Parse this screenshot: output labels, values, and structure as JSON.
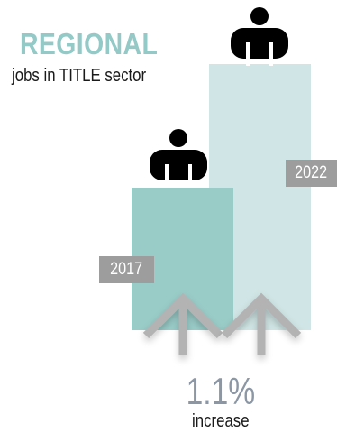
{
  "heading": {
    "title": "REGIONAL",
    "subtitle": "jobs in TITLE sector"
  },
  "chart_data": {
    "type": "bar",
    "categories": [
      "2017",
      "2022"
    ],
    "title": "REGIONAL",
    "subtitle": "jobs in TITLE sector",
    "xlabel": "",
    "ylabel": "",
    "annotation": {
      "value": "1.1%",
      "caption": "increase"
    }
  },
  "colors": {
    "title": "#93c9c6",
    "bar_2017": "#99cbc7",
    "bar_2022": "#d0e5e5",
    "year_tag": "#9d9d9d",
    "icon": "#000000",
    "arrow": "#b3b3b3",
    "pct_text": "#8c97a5"
  },
  "icons": {
    "person": "person-icon",
    "arrow": "up-arrow-icon"
  }
}
